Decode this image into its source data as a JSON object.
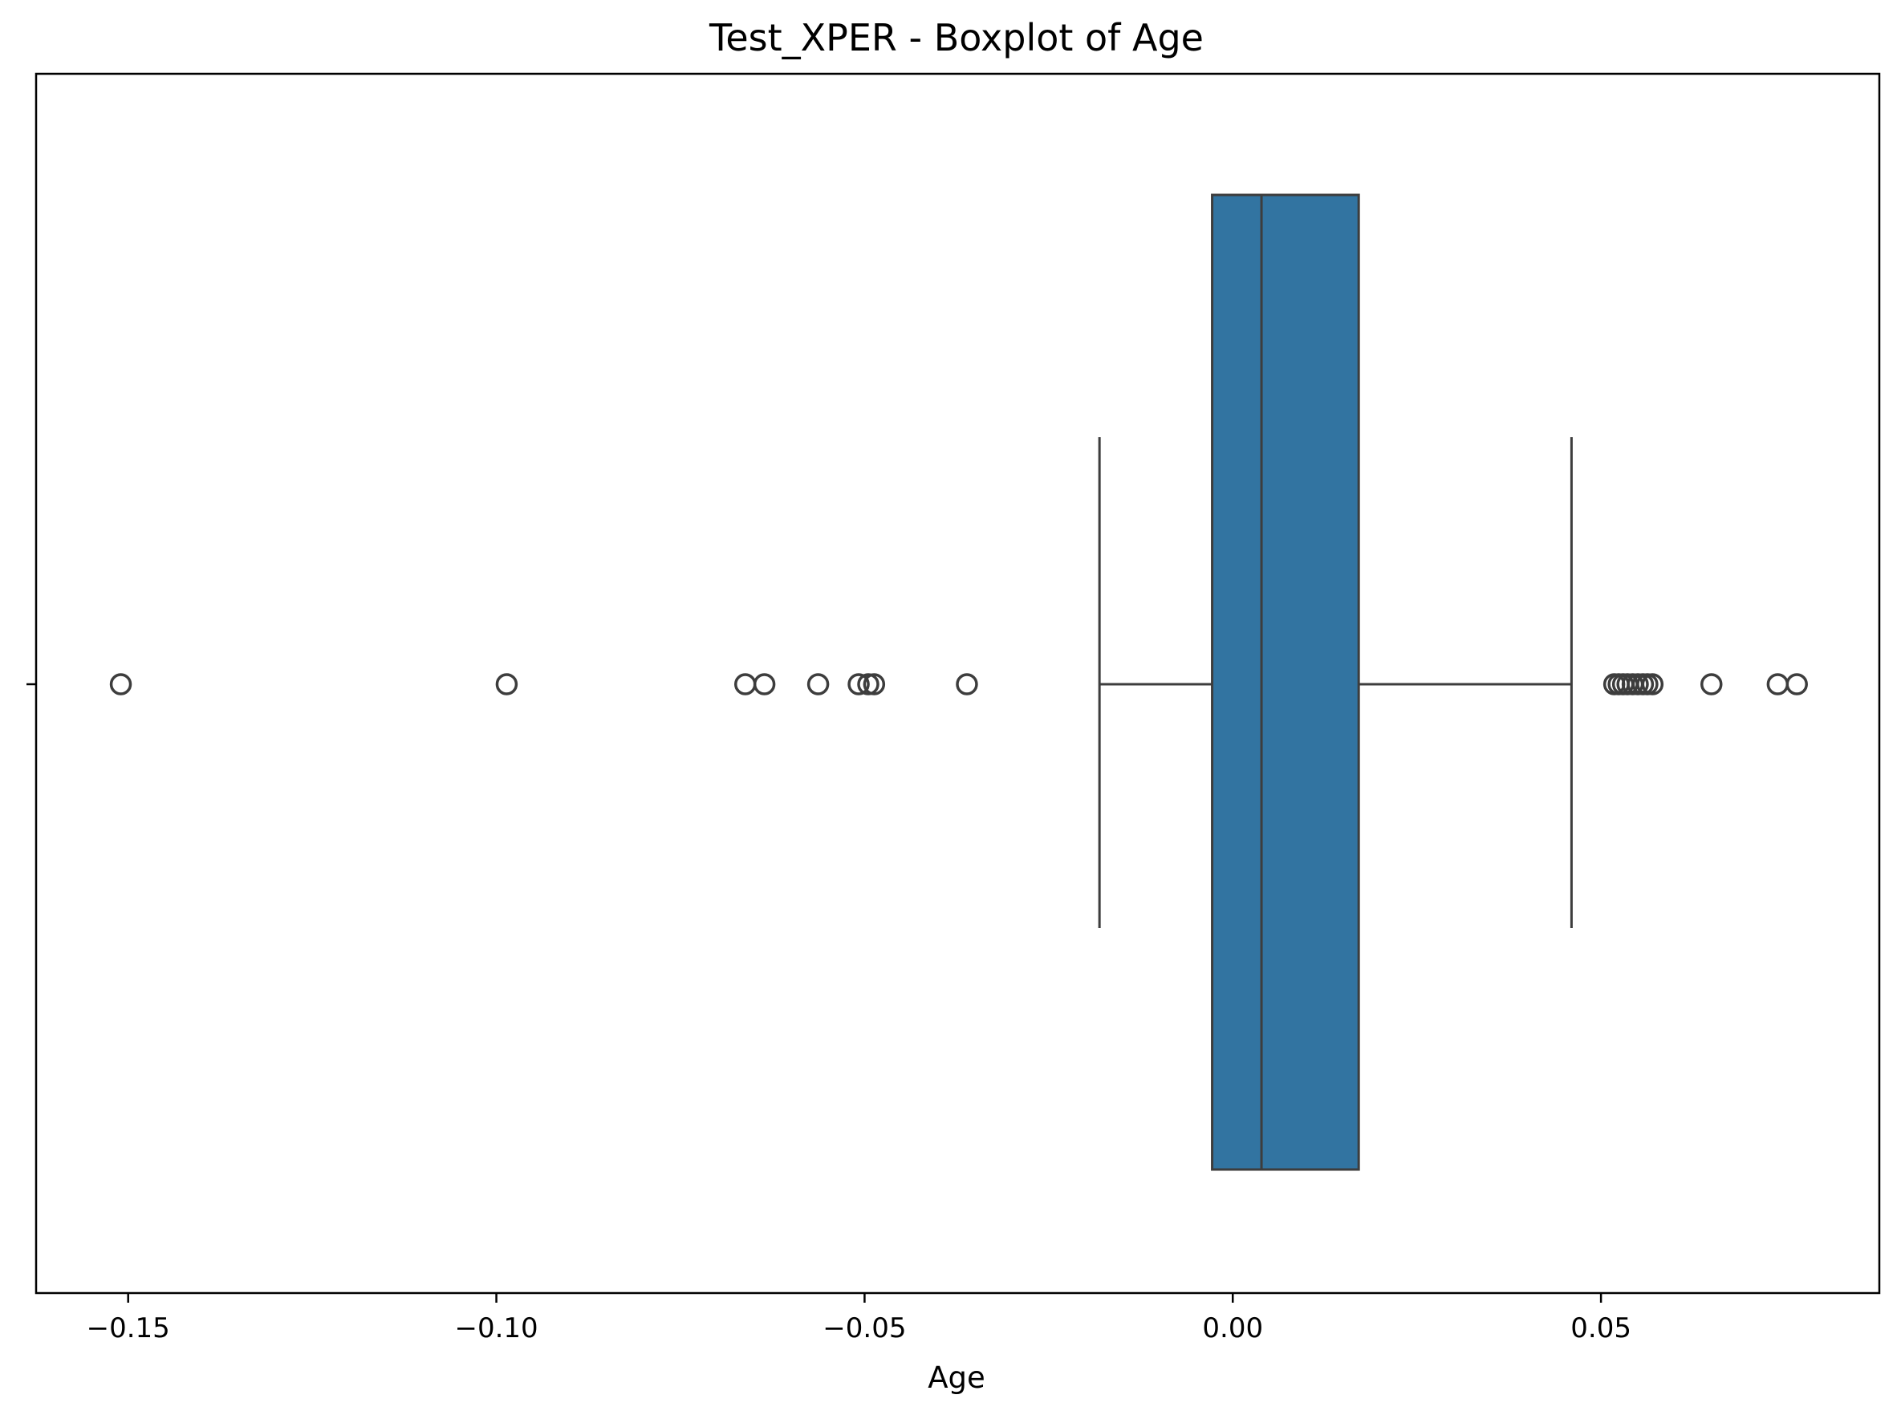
{
  "chart_data": {
    "type": "boxplot",
    "title": "Test_XPER - Boxplot of Age",
    "xlabel": "Age",
    "ylabel": "",
    "orientation": "horizontal",
    "xlim": [
      -0.1625,
      0.0878
    ],
    "x_ticks": [
      -0.15,
      -0.1,
      -0.05,
      0.0,
      0.05
    ],
    "x_tick_labels": [
      "−0.15",
      "−0.10",
      "−0.05",
      "0.00",
      "0.05"
    ],
    "grid": false,
    "box": {
      "whisker_low": -0.0181,
      "q1": -0.0028,
      "median": 0.0039,
      "q3": 0.0171,
      "whisker_high": 0.046
    },
    "outliers": [
      -0.151,
      -0.0986,
      -0.0662,
      -0.0636,
      -0.0563,
      -0.0508,
      -0.0495,
      -0.0487,
      -0.0361,
      0.0518,
      0.0524,
      0.053,
      0.0536,
      0.0543,
      0.055,
      0.0557,
      0.0563,
      0.057,
      0.065,
      0.074,
      0.0766
    ],
    "colors": {
      "box_fill": "#3274a1",
      "line": "#3d3d3d",
      "axes": "#000000",
      "background": "#ffffff"
    }
  }
}
